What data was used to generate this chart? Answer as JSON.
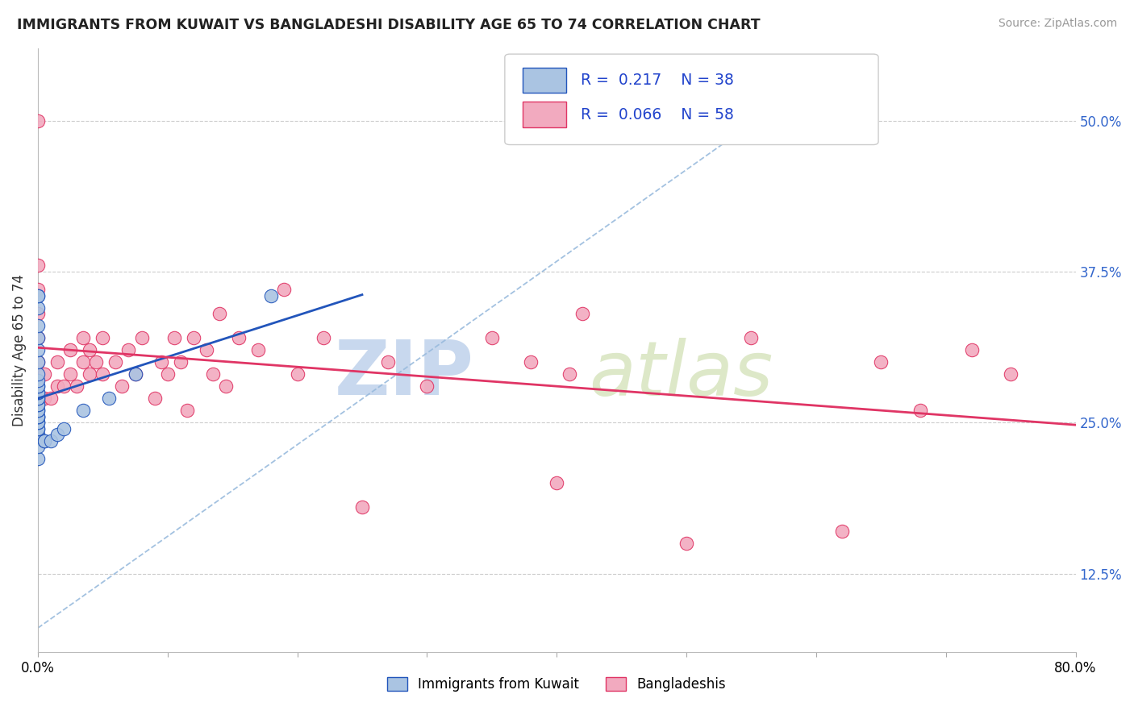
{
  "title": "IMMIGRANTS FROM KUWAIT VS BANGLADESHI DISABILITY AGE 65 TO 74 CORRELATION CHART",
  "source_text": "Source: ZipAtlas.com",
  "ylabel": "Disability Age 65 to 74",
  "y_ticks": [
    0.125,
    0.25,
    0.375,
    0.5
  ],
  "y_tick_labels": [
    "12.5%",
    "25.0%",
    "37.5%",
    "50.0%"
  ],
  "xlim": [
    0.0,
    0.8
  ],
  "ylim": [
    0.06,
    0.56
  ],
  "legend_r_kuwait": "0.217",
  "legend_n_kuwait": "38",
  "legend_r_bangladeshi": "0.066",
  "legend_n_bangladeshi": "58",
  "legend_label_kuwait": "Immigrants from Kuwait",
  "legend_label_bangladeshi": "Bangladeshis",
  "kuwait_color": "#aac4e2",
  "bangladeshi_color": "#f2aabf",
  "kuwait_line_color": "#2255bb",
  "bangladeshi_line_color": "#e03565",
  "trendline_dashed_color": "#99bbdd",
  "kuwait_x": [
    0.0,
    0.0,
    0.0,
    0.0,
    0.0,
    0.0,
    0.0,
    0.0,
    0.0,
    0.0,
    0.0,
    0.0,
    0.0,
    0.0,
    0.0,
    0.0,
    0.0,
    0.0,
    0.0,
    0.0,
    0.0,
    0.0,
    0.0,
    0.0,
    0.0,
    0.0,
    0.0,
    0.0,
    0.0,
    0.005,
    0.005,
    0.01,
    0.015,
    0.02,
    0.035,
    0.055,
    0.075,
    0.18
  ],
  "kuwait_y": [
    0.24,
    0.245,
    0.245,
    0.25,
    0.25,
    0.255,
    0.255,
    0.255,
    0.26,
    0.26,
    0.265,
    0.265,
    0.27,
    0.27,
    0.275,
    0.275,
    0.28,
    0.28,
    0.285,
    0.29,
    0.3,
    0.31,
    0.32,
    0.33,
    0.345,
    0.355,
    0.355,
    0.22,
    0.23,
    0.235,
    0.235,
    0.235,
    0.24,
    0.245,
    0.26,
    0.27,
    0.29,
    0.355
  ],
  "bangladeshi_x": [
    0.0,
    0.0,
    0.0,
    0.0,
    0.0,
    0.0,
    0.005,
    0.005,
    0.01,
    0.015,
    0.015,
    0.02,
    0.025,
    0.025,
    0.03,
    0.035,
    0.035,
    0.04,
    0.04,
    0.045,
    0.05,
    0.05,
    0.06,
    0.065,
    0.07,
    0.075,
    0.08,
    0.09,
    0.095,
    0.1,
    0.105,
    0.11,
    0.115,
    0.12,
    0.13,
    0.135,
    0.14,
    0.145,
    0.155,
    0.17,
    0.19,
    0.2,
    0.22,
    0.25,
    0.27,
    0.3,
    0.35,
    0.38,
    0.4,
    0.41,
    0.42,
    0.5,
    0.55,
    0.62,
    0.65,
    0.68,
    0.72,
    0.75
  ],
  "bangladeshi_y": [
    0.3,
    0.32,
    0.34,
    0.36,
    0.38,
    0.5,
    0.27,
    0.29,
    0.27,
    0.28,
    0.3,
    0.28,
    0.29,
    0.31,
    0.28,
    0.3,
    0.32,
    0.29,
    0.31,
    0.3,
    0.29,
    0.32,
    0.3,
    0.28,
    0.31,
    0.29,
    0.32,
    0.27,
    0.3,
    0.29,
    0.32,
    0.3,
    0.26,
    0.32,
    0.31,
    0.29,
    0.34,
    0.28,
    0.32,
    0.31,
    0.36,
    0.29,
    0.32,
    0.18,
    0.3,
    0.28,
    0.32,
    0.3,
    0.2,
    0.29,
    0.34,
    0.15,
    0.32,
    0.16,
    0.3,
    0.26,
    0.31,
    0.29
  ]
}
